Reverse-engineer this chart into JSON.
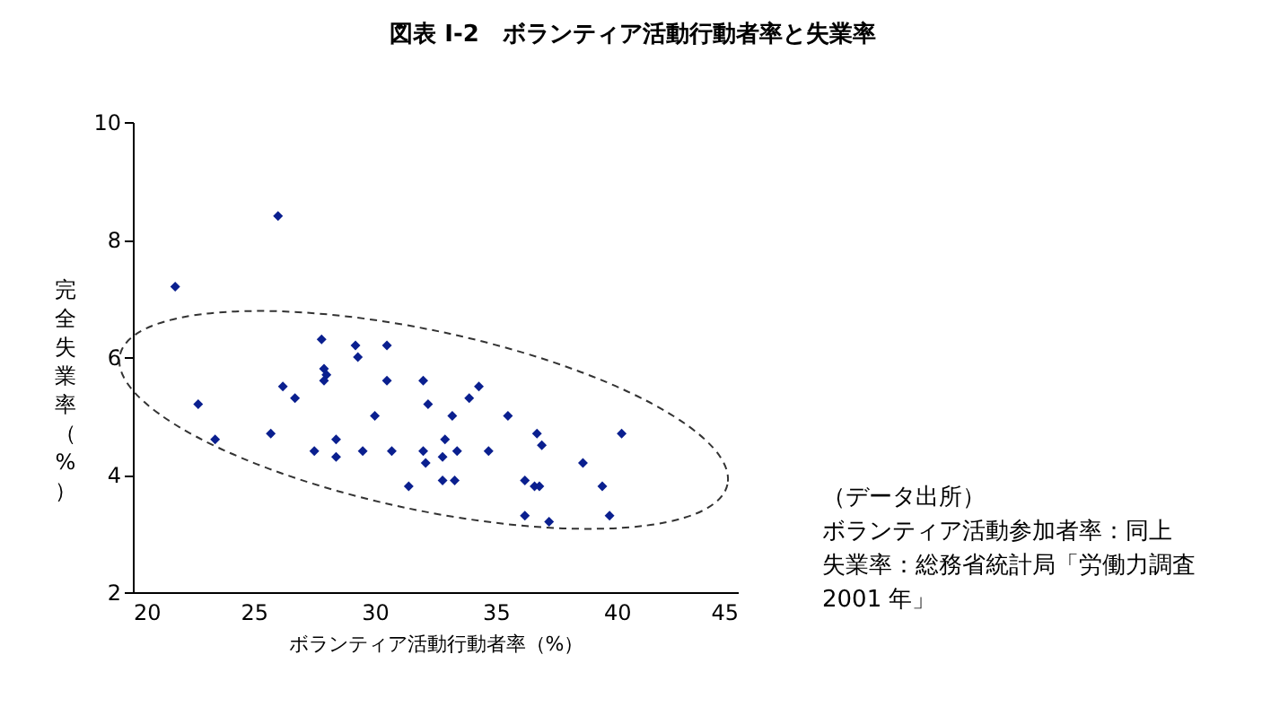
{
  "chart_data": {
    "type": "scatter",
    "title": "図表 I-2　ボランティア活動行動者率と失業率",
    "xlabel": "ボランティア活動行動者率（%）",
    "ylabel": "完全失業率（%）",
    "annotations": [
      "（データ出所）",
      "ボランティア活動参加者率：同上",
      "失業率：総務省統計局「労働力調査 2001 年」"
    ],
    "xlim": [
      20,
      45
    ],
    "xticks": [
      20,
      25,
      30,
      35,
      40,
      45
    ],
    "ylim": [
      2,
      10
    ],
    "yticks": [
      2,
      4,
      6,
      8,
      10
    ],
    "grid": false,
    "legend": false,
    "marker": "diamond",
    "series": [
      {
        "color": "#0a1f8f",
        "x": [
          21.75,
          26.0,
          22.7,
          23.4,
          25.7,
          26.2,
          26.7,
          27.8,
          27.9,
          28.0,
          27.9,
          27.5,
          28.4,
          28.4,
          29.2,
          29.3,
          29.5,
          30.0,
          30.5,
          30.5,
          30.7,
          31.4,
          32.0,
          32.2,
          32.0,
          32.1,
          34.3,
          33.9,
          33.2,
          35.5,
          32.9,
          32.8,
          33.4,
          34.7,
          36.7,
          36.9,
          40.2,
          38.6,
          32.8,
          33.3,
          36.2,
          36.6,
          36.8,
          39.4,
          36.2,
          37.2,
          39.7
        ],
        "values": [
          7.2,
          8.4,
          5.2,
          4.6,
          4.7,
          5.5,
          5.3,
          6.3,
          5.8,
          5.7,
          5.6,
          4.4,
          4.6,
          4.3,
          6.2,
          6.0,
          4.4,
          5.0,
          6.2,
          5.6,
          4.4,
          3.8,
          5.6,
          5.2,
          4.4,
          4.2,
          5.5,
          5.3,
          5.0,
          5.0,
          4.6,
          4.3,
          4.4,
          4.4,
          4.7,
          4.5,
          4.7,
          4.2,
          3.9,
          3.9,
          3.9,
          3.8,
          3.8,
          3.8,
          3.3,
          3.2,
          3.3
        ]
      }
    ]
  }
}
